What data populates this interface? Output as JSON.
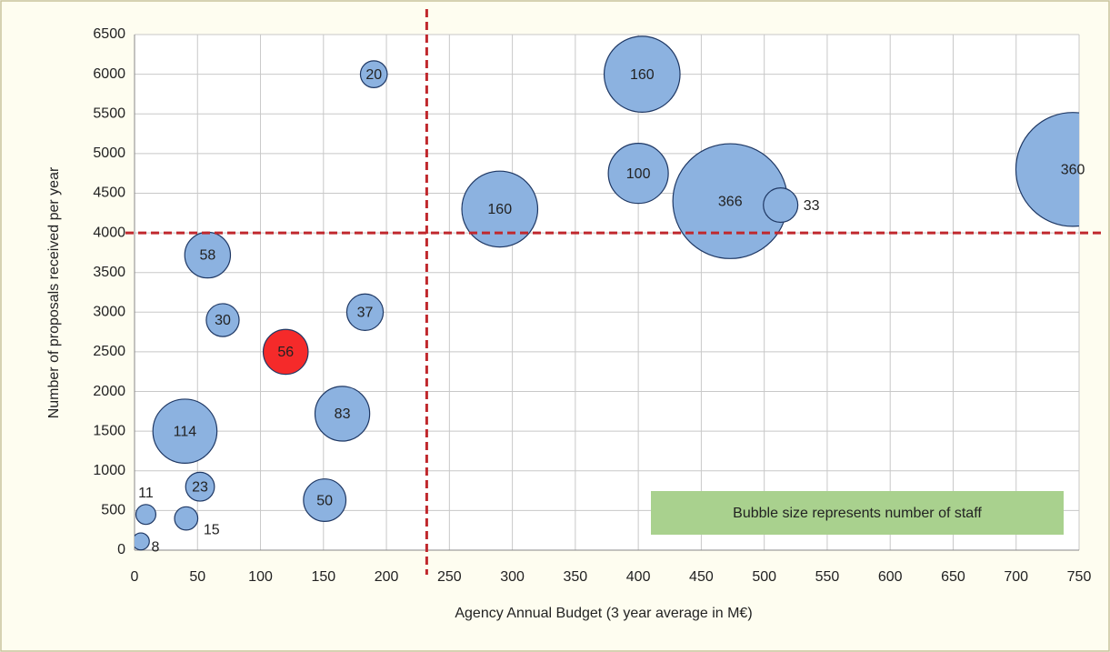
{
  "chart_data": {
    "type": "bubble",
    "x_label": "Agency Annual Budget (3 year average in M€)",
    "y_label": "Number of proposals received per year",
    "annotation": "Bubble size represents number of staff",
    "x": [
      190,
      403,
      400,
      290,
      473,
      513,
      745,
      58,
      70,
      183,
      120,
      165,
      40,
      52,
      151,
      9,
      41,
      5
    ],
    "y": [
      6000,
      6000,
      4750,
      4300,
      4400,
      4350,
      4800,
      3720,
      2900,
      3000,
      2500,
      1720,
      1500,
      800,
      630,
      450,
      400,
      110
    ],
    "sizes": [
      20,
      160,
      100,
      160,
      366,
      33,
      360,
      58,
      30,
      37,
      56,
      83,
      114,
      23,
      50,
      11,
      15,
      8
    ],
    "colors": [
      "#8cb2e0",
      "#8cb2e0",
      "#8cb2e0",
      "#8cb2e0",
      "#8cb2e0",
      "#8cb2e0",
      "#8cb2e0",
      "#8cb2e0",
      "#8cb2e0",
      "#8cb2e0",
      "#f52a2a",
      "#8cb2e0",
      "#8cb2e0",
      "#8cb2e0",
      "#8cb2e0",
      "#8cb2e0",
      "#8cb2e0",
      "#8cb2e0"
    ],
    "reference_x": 232,
    "reference_y": 4000,
    "reference_color": "#c0282d",
    "xlim": [
      0,
      750
    ],
    "xticks": [
      0,
      50,
      100,
      150,
      200,
      250,
      300,
      350,
      400,
      450,
      500,
      550,
      600,
      650,
      700,
      750
    ],
    "ylim": [
      0,
      6500
    ],
    "yticks": [
      0,
      500,
      1000,
      1500,
      2000,
      2500,
      3000,
      3500,
      4000,
      4500,
      5000,
      5500,
      6000,
      6500
    ],
    "grid": true
  }
}
